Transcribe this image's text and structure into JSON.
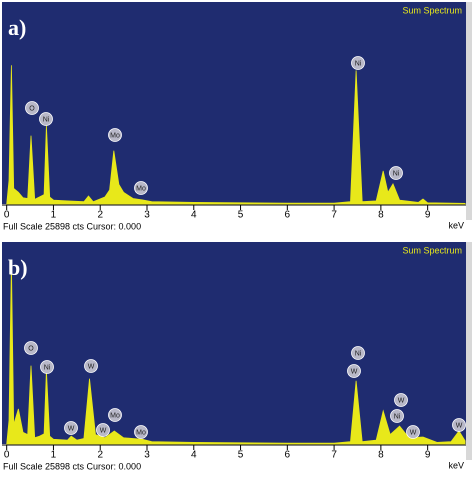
{
  "chart_data": [
    {
      "type": "area",
      "panel_label": "a)",
      "header": "Sum Spectrum",
      "footer": "Full Scale 25898 cts Cursor: 0.000",
      "x_label": "keV",
      "background": "#1f2c70",
      "color": "#e8e81a",
      "xlim": [
        -0.1,
        9.82
      ],
      "ylim": [
        0,
        25898
      ],
      "xticks": [
        0,
        1,
        2,
        3,
        4,
        5,
        6,
        7,
        8,
        9
      ],
      "x": [
        0,
        0.05,
        0.1,
        0.15,
        0.25,
        0.35,
        0.45,
        0.52,
        0.6,
        0.7,
        0.8,
        0.85,
        0.92,
        1.0,
        1.3,
        1.65,
        1.75,
        1.85,
        2.1,
        2.2,
        2.29,
        2.4,
        2.5,
        2.7,
        2.9,
        3.1,
        4,
        5,
        6,
        7,
        7.35,
        7.47,
        7.6,
        7.9,
        8.05,
        8.15,
        8.26,
        8.4,
        8.8,
        8.9,
        9.0,
        9.5,
        9.8
      ],
      "values": [
        0,
        3000,
        17800,
        2000,
        1500,
        800,
        700,
        8760,
        600,
        900,
        1200,
        10050,
        900,
        500,
        400,
        300,
        1030,
        300,
        900,
        1800,
        6830,
        2500,
        1500,
        700,
        520,
        300,
        200,
        150,
        120,
        100,
        300,
        17130,
        300,
        400,
        4250,
        1500,
        2580,
        500,
        200,
        640,
        150,
        100,
        80
      ],
      "annotations": [
        "O",
        "Ni",
        "Mo",
        "Mo",
        "Ni",
        "Ni"
      ]
    },
    {
      "type": "area",
      "panel_label": "b)",
      "header": "Sum Spectrum",
      "footer": "Full Scale 25898 cts Cursor: 0.000",
      "x_label": "keV",
      "background": "#1f2c70",
      "color": "#e8e81a",
      "xlim": [
        -0.1,
        9.82
      ],
      "ylim": [
        0,
        25898
      ],
      "xticks": [
        0,
        1,
        2,
        3,
        4,
        5,
        6,
        7,
        8,
        9
      ],
      "x": [
        0,
        0.05,
        0.1,
        0.15,
        0.25,
        0.35,
        0.45,
        0.52,
        0.6,
        0.7,
        0.8,
        0.85,
        0.92,
        1.0,
        1.3,
        1.38,
        1.5,
        1.65,
        1.77,
        1.9,
        2.1,
        2.3,
        2.5,
        2.9,
        3.1,
        4,
        5,
        6,
        7,
        7.35,
        7.47,
        7.6,
        7.9,
        8.05,
        8.2,
        8.4,
        8.6,
        8.9,
        9.2,
        9.5,
        9.67,
        9.8
      ],
      "values": [
        0,
        3000,
        23300,
        2500,
        4500,
        1500,
        1200,
        10050,
        800,
        1000,
        1300,
        9400,
        1000,
        600,
        500,
        1000,
        500,
        700,
        8370,
        1200,
        800,
        1670,
        800,
        600,
        300,
        200,
        150,
        120,
        100,
        300,
        8100,
        300,
        500,
        4250,
        1200,
        2300,
        800,
        900,
        200,
        300,
        1670,
        400
      ],
      "annotations": [
        "O",
        "Ni",
        "W",
        "W",
        "W",
        "Mo",
        "Mo",
        "Ni",
        "W",
        "W",
        "Ni",
        "W",
        "W"
      ]
    }
  ]
}
